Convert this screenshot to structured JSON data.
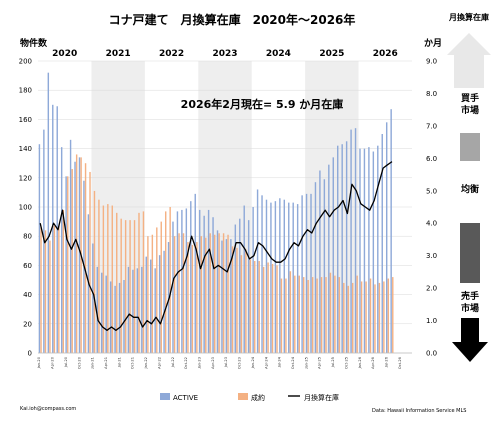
{
  "chart_data": {
    "type": "bar",
    "title": "コナ戸建て　月換算在庫　2020年〜2026年",
    "annotation": "2026年2月現在= 5.9 か月在庫",
    "ylabel_left": "物件数",
    "ylabel_right": "か月",
    "ylim_left": [
      0,
      200
    ],
    "yticks_left": [
      "0",
      "20",
      "40",
      "60",
      "80",
      "100",
      "120",
      "140",
      "160",
      "180",
      "200"
    ],
    "ylim_right": [
      0,
      9
    ],
    "yticks_right": [
      "0.0",
      "1.0",
      "2.0",
      "3.0",
      "4.0",
      "5.0",
      "6.0",
      "7.0",
      "8.0",
      "9.0"
    ],
    "years": [
      "2020",
      "2021",
      "2022",
      "2023",
      "2024",
      "2025",
      "2026"
    ],
    "x_ticks": [
      "Jan-20",
      "Apr-20",
      "Jul-20",
      "Oct-20",
      "Jan-21",
      "Apr-21",
      "Jul-21",
      "Oct-21",
      "Jan-22",
      "Apr-22",
      "Jul-22",
      "Oct-22",
      "Jan-23",
      "Apr-23",
      "Jul-23",
      "Oct-23",
      "Jan-24",
      "Apr-24",
      "Jul-24",
      "Oct-24",
      "Jan-25",
      "Apr-25",
      "Jul-25",
      "Oct-25",
      "Jan-26",
      "Apr-26",
      "Jul-26",
      "Oct-26"
    ],
    "n_months": 84,
    "series": [
      {
        "name": "ACTIVE",
        "color": "#8EA9D8",
        "values": [
          143,
          153,
          192,
          170,
          169,
          141,
          121,
          146,
          131,
          134,
          118,
          95,
          75,
          59,
          55,
          53,
          49,
          46,
          48,
          50,
          59,
          57,
          58,
          59,
          66,
          64,
          58,
          67,
          70,
          76,
          90,
          97,
          98,
          99,
          104,
          109,
          98,
          94,
          98,
          93,
          84,
          77,
          78,
          78,
          88,
          92,
          101,
          91,
          100,
          112,
          108,
          105,
          103,
          104,
          106,
          105,
          103,
          103,
          102,
          108,
          109,
          109,
          117,
          125,
          119,
          129,
          134,
          142,
          143,
          145,
          153,
          154,
          140,
          140,
          141,
          138,
          142,
          150,
          158,
          167,
          null,
          null,
          null,
          null
        ]
      },
      {
        "name": "成約",
        "color": "#F4B183",
        "values": [
          86,
          84,
          77,
          87,
          87,
          98,
          121,
          126,
          136,
          134,
          130,
          124,
          111,
          105,
          101,
          102,
          101,
          96,
          92,
          91,
          91,
          91,
          96,
          97,
          80,
          81,
          86,
          90,
          97,
          100,
          80,
          82,
          82,
          76,
          74,
          76,
          80,
          79,
          82,
          81,
          82,
          82,
          81,
          73,
          72,
          67,
          71,
          64,
          63,
          63,
          59,
          62,
          61,
          60,
          51,
          51,
          56,
          53,
          53,
          52,
          50,
          52,
          51,
          52,
          52,
          55,
          53,
          52,
          48,
          46,
          48,
          53,
          49,
          49,
          51,
          47,
          48,
          49,
          51,
          52,
          null,
          null,
          null,
          null
        ]
      },
      {
        "name": "月換算在庫",
        "color": "#000000",
        "axis": "right",
        "values": [
          4.0,
          3.4,
          3.6,
          4.0,
          3.8,
          4.4,
          3.5,
          3.2,
          3.5,
          3.1,
          2.6,
          2.1,
          1.8,
          1.0,
          0.8,
          0.7,
          0.8,
          0.7,
          0.8,
          1.0,
          1.2,
          1.1,
          1.1,
          0.8,
          1.0,
          0.9,
          1.1,
          0.9,
          1.3,
          1.7,
          2.3,
          2.5,
          2.6,
          3.0,
          3.6,
          3.2,
          2.6,
          3.0,
          3.2,
          2.6,
          2.7,
          2.6,
          2.5,
          2.9,
          3.4,
          3.4,
          3.2,
          2.9,
          3.0,
          3.4,
          3.3,
          3.1,
          2.9,
          2.8,
          2.8,
          2.9,
          3.2,
          3.4,
          3.3,
          3.6,
          3.8,
          3.7,
          4.0,
          4.2,
          4.4,
          4.2,
          4.4,
          4.5,
          4.7,
          4.3,
          5.2,
          5.0,
          4.6,
          4.5,
          4.4,
          4.7,
          5.2,
          5.7,
          5.8,
          5.9,
          null,
          null,
          null,
          null
        ]
      }
    ],
    "legend": [
      "ACTIVE",
      "成約",
      "月換算在庫"
    ],
    "legend_position": "bottom",
    "source": "Data: Hawaii Information Service MLS",
    "contact": "Kai.ioh@compass.com"
  },
  "side_panel": {
    "title": "月換算在庫",
    "buyers_market": "買手\n市場",
    "balanced": "均衡",
    "sellers_market": "売手\n市場"
  },
  "colors": {
    "active": "#8EA9D8",
    "sold": "#F4B183",
    "line": "#000000",
    "band": "#EEEEEE",
    "grid": "#D9D9D9"
  }
}
